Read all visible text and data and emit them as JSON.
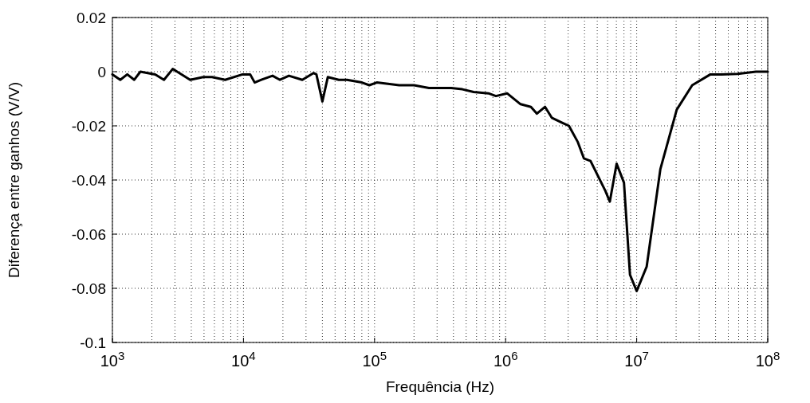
{
  "chart_data": {
    "type": "line",
    "xlabel": "Frequência (Hz)",
    "ylabel": "Diferença entre ganhos (V/V)",
    "log": "x",
    "grid": true,
    "line_style": "solid",
    "marker": "none",
    "xlim": [
      1000,
      100000000
    ],
    "ylim": [
      -0.1,
      0.02
    ],
    "xticks": [
      {
        "value": 1000,
        "label": "10$^{3}$"
      },
      {
        "value": 10000,
        "label": "10$^{4}$"
      },
      {
        "value": 100000,
        "label": "10$^{5}$"
      },
      {
        "value": 1000000,
        "label": "10$^{6}$"
      },
      {
        "value": 10000000,
        "label": "10$^{7}$"
      },
      {
        "value": 100000000,
        "label": "10$^{8}$"
      }
    ],
    "yticks": [
      -0.1,
      -0.08,
      -0.06,
      -0.04,
      -0.02,
      0,
      0.02
    ],
    "series": [
      {
        "color": "#000000",
        "x": [
          1000,
          1148,
          1298,
          1468,
          1634,
          2121,
          2473,
          2884,
          3920,
          4937,
          5754,
          7244,
          9840,
          11250,
          12170,
          13690,
          16670,
          18970,
          22220,
          28120,
          34200,
          36000,
          40000,
          44000,
          53350,
          61660,
          80000,
          91200,
          104000,
          154200,
          200000,
          260000,
          316200,
          384600,
          467700,
          570200,
          739600,
          843300,
          1026000,
          1300000,
          1560000,
          1733000,
          2000000,
          2250000,
          2740000,
          3041000,
          3556000,
          3954000,
          4446000,
          5768000,
          6237000,
          7031000,
          8000000,
          8892000,
          10000000,
          11920000,
          15160000,
          20220000,
          26530000,
          36520000,
          44250000,
          59000000,
          81200000,
          100000000
        ],
        "values": [
          -0.001,
          -0.003,
          -0.001,
          -0.003,
          0,
          -0.001,
          -0.003,
          0.001,
          -0.003,
          -0.002,
          -0.002,
          -0.003,
          -0.001,
          -0.001,
          -0.004,
          -0.003,
          -0.0015,
          -0.003,
          -0.0015,
          -0.003,
          -0.0005,
          -0.001,
          -0.011,
          -0.002,
          -0.003,
          -0.003,
          -0.004,
          -0.005,
          -0.004,
          -0.005,
          -0.005,
          -0.006,
          -0.006,
          -0.006,
          -0.0065,
          -0.0075,
          -0.008,
          -0.009,
          -0.008,
          -0.012,
          -0.013,
          -0.0155,
          -0.013,
          -0.017,
          -0.019,
          -0.02,
          -0.026,
          -0.032,
          -0.033,
          -0.044,
          -0.048,
          -0.034,
          -0.041,
          -0.075,
          -0.081,
          -0.072,
          -0.036,
          -0.014,
          -0.005,
          -0.001,
          -0.001,
          -0.0008,
          0,
          0
        ]
      }
    ]
  }
}
